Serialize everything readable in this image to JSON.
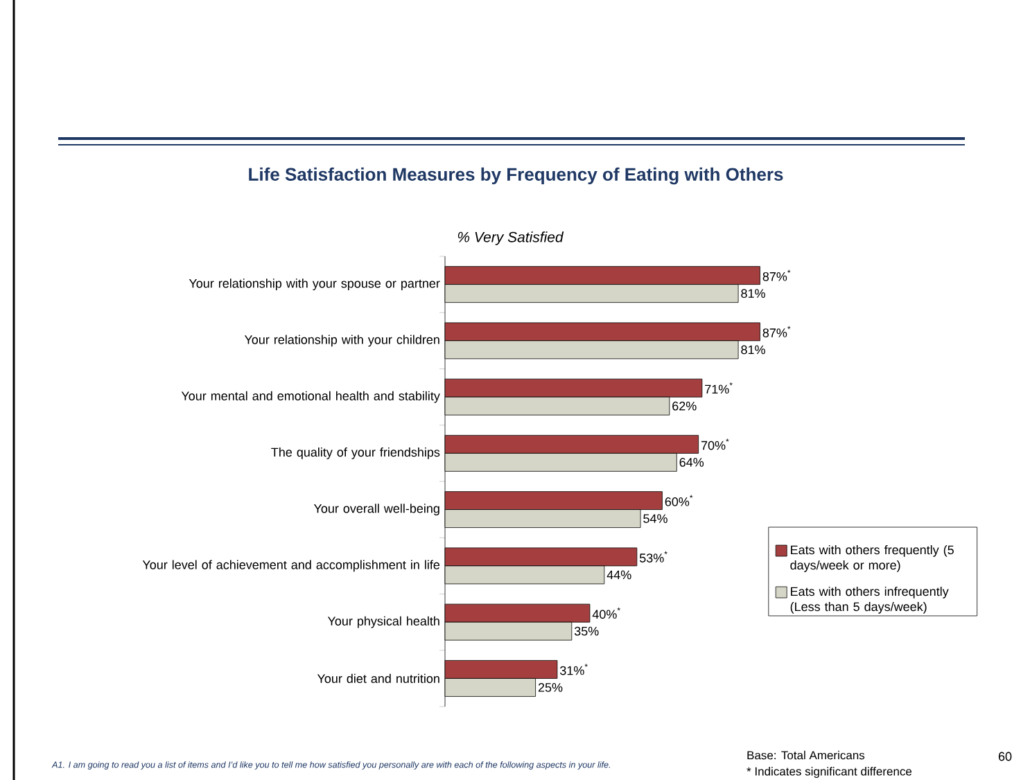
{
  "chart_data": {
    "type": "bar",
    "orientation": "horizontal",
    "title": "Life Satisfaction Measures by Frequency of Eating with Others",
    "subtitle": "% Very Satisfied",
    "categories": [
      "Your relationship with your spouse or partner",
      "Your relationship with your children",
      "Your mental and emotional health and stability",
      "The quality of your friendships",
      "Your overall well-being",
      "Your level of achievement and accomplishment in life",
      "Your physical health",
      "Your diet and nutrition"
    ],
    "series": [
      {
        "name": "Eats with others frequently (5 days/week or more)",
        "color": "#a53f3f",
        "values": [
          87,
          87,
          71,
          70,
          60,
          53,
          40,
          31
        ],
        "value_labels": [
          "87%$^{*}$",
          "87%$^{*}$",
          "71%$^{*}$",
          "70%$^{*}$",
          "60%$^{*}$",
          "53%$^{*}$",
          "40%$^{*}$",
          "31%$^{*}$"
        ]
      },
      {
        "name": "Eats with others infrequently (Less than 5 days/week)",
        "color": "#d6d6c8",
        "values": [
          81,
          81,
          62,
          64,
          54,
          44,
          35,
          25
        ],
        "value_labels": [
          "81%",
          "81%",
          "62%",
          "64%",
          "54%",
          "44%",
          "35%",
          "25%"
        ]
      }
    ],
    "legend": "right",
    "tick_labels": "y",
    "annotations": [
      "Base: Total Americans",
      "* Indicates significant difference",
      "A1. I am going to read you a list of items and I’d like you to tell me how satisfied you personally are with each of the following aspects in your life.",
      "60"
    ]
  }
}
